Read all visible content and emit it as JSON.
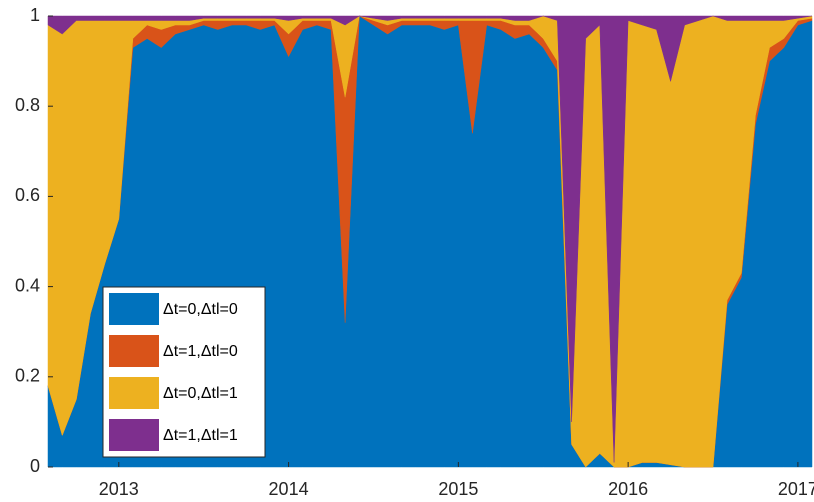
{
  "chart_data": {
    "type": "stacked-area",
    "x": [
      2012.583,
      2012.667,
      2012.75,
      2012.833,
      2012.917,
      2013.0,
      2013.083,
      2013.167,
      2013.25,
      2013.333,
      2013.417,
      2013.5,
      2013.583,
      2013.667,
      2013.75,
      2013.833,
      2013.917,
      2014.0,
      2014.083,
      2014.167,
      2014.25,
      2014.333,
      2014.417,
      2014.5,
      2014.583,
      2014.667,
      2014.75,
      2014.833,
      2014.917,
      2015.0,
      2015.083,
      2015.167,
      2015.25,
      2015.333,
      2015.417,
      2015.5,
      2015.583,
      2015.667,
      2015.75,
      2015.833,
      2015.917,
      2016.0,
      2016.083,
      2016.167,
      2016.25,
      2016.333,
      2016.417,
      2016.5,
      2016.583,
      2016.667,
      2016.75,
      2016.833,
      2016.917,
      2017.0,
      2017.083
    ],
    "series": [
      {
        "name": "Δt=0,Δtl=0",
        "color": "#0072BD",
        "values": [
          0.18,
          0.07,
          0.15,
          0.34,
          0.45,
          0.55,
          0.93,
          0.95,
          0.93,
          0.96,
          0.97,
          0.98,
          0.97,
          0.98,
          0.98,
          0.97,
          0.98,
          0.91,
          0.97,
          0.98,
          0.97,
          0.32,
          1.0,
          0.98,
          0.96,
          0.98,
          0.98,
          0.98,
          0.97,
          0.98,
          0.74,
          0.98,
          0.97,
          0.95,
          0.96,
          0.93,
          0.88,
          0.05,
          0.0,
          0.03,
          0.0,
          0.0,
          0.01,
          0.01,
          0.005,
          0.0,
          0.0,
          0.0,
          0.36,
          0.42,
          0.76,
          0.9,
          0.93,
          0.98,
          0.99
        ]
      },
      {
        "name": "Δt=1,Δtl=0",
        "color": "#D95319",
        "values": [
          0,
          0,
          0,
          0,
          0,
          0,
          0.02,
          0.03,
          0.04,
          0.02,
          0.01,
          0.01,
          0.02,
          0.01,
          0.01,
          0.02,
          0.01,
          0.05,
          0.02,
          0.01,
          0.02,
          0.5,
          0,
          0.01,
          0.02,
          0.01,
          0.01,
          0.01,
          0.02,
          0.01,
          0.25,
          0.01,
          0.02,
          0.03,
          0.02,
          0.02,
          0.02,
          0,
          0,
          0,
          0,
          0,
          0,
          0,
          0,
          0,
          0,
          0,
          0.01,
          0.01,
          0.02,
          0.03,
          0.02,
          0.01,
          0.005
        ]
      },
      {
        "name": "Δt=0,Δtl=1",
        "color": "#EDB120",
        "values": [
          0.8,
          0.89,
          0.84,
          0.65,
          0.54,
          0.44,
          0.04,
          0.01,
          0.02,
          0.01,
          0.01,
          0.005,
          0.005,
          0.005,
          0.005,
          0.005,
          0.005,
          0.03,
          0.005,
          0.005,
          0.005,
          0.16,
          0,
          0.005,
          0.01,
          0.005,
          0.005,
          0.005,
          0.005,
          0.005,
          0.005,
          0.005,
          0.005,
          0.01,
          0.01,
          0.05,
          0.09,
          0.05,
          0.95,
          0.95,
          0.01,
          0.99,
          0.97,
          0.96,
          0.85,
          0.98,
          0.99,
          1.0,
          0.62,
          0.56,
          0.21,
          0.06,
          0.04,
          0.005,
          0.005
        ]
      },
      {
        "name": "Δt=1,Δtl=1",
        "color": "#7E2F8E",
        "values": [
          0.02,
          0.04,
          0.01,
          0.01,
          0.01,
          0.01,
          0.01,
          0.01,
          0.01,
          0.01,
          0.01,
          0.005,
          0.005,
          0.005,
          0.005,
          0.005,
          0.005,
          0.01,
          0.005,
          0.005,
          0.005,
          0.02,
          0,
          0.005,
          0.01,
          0.005,
          0.005,
          0.005,
          0.005,
          0.005,
          0.005,
          0.005,
          0.005,
          0.01,
          0.01,
          0,
          0.01,
          0.9,
          0.05,
          0.02,
          0.99,
          0.01,
          0.02,
          0.03,
          0.145,
          0.02,
          0.01,
          0,
          0.01,
          0.01,
          0.01,
          0.01,
          0.01,
          0.005,
          0
        ]
      }
    ],
    "xlim": [
      2012.583,
      2017.083
    ],
    "xticks": [
      2013,
      2014,
      2015,
      2016,
      2017
    ],
    "ylim": [
      0,
      1
    ],
    "yticks": [
      0,
      0.2,
      0.4,
      0.6,
      0.8,
      1
    ],
    "grid": false,
    "legend": "lower-left"
  }
}
